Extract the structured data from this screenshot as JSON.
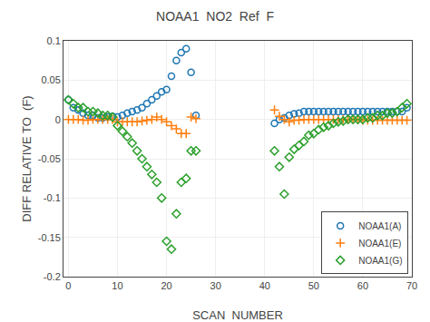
{
  "chart_data": {
    "type": "scatter",
    "title": "NOAA1  NO2  Ref  F",
    "x_label": "SCAN  NUMBER",
    "y_label": "DIFF RELATIVE TO  (F)",
    "xlim": [
      -1,
      70
    ],
    "ylim": [
      -0.2,
      0.1
    ],
    "xticks": [
      0,
      10,
      20,
      30,
      40,
      50,
      60,
      70
    ],
    "yticks": [
      0.1,
      0.05,
      0,
      -0.05,
      -0.1,
      -0.15,
      -0.2
    ],
    "grid": true,
    "legend": "lower right",
    "x": [
      0,
      1,
      2,
      3,
      4,
      5,
      6,
      7,
      8,
      9,
      10,
      11,
      12,
      13,
      14,
      15,
      16,
      17,
      18,
      19,
      20,
      21,
      22,
      23,
      24,
      25,
      26,
      42,
      43,
      44,
      45,
      46,
      47,
      48,
      49,
      50,
      51,
      52,
      53,
      54,
      55,
      56,
      57,
      58,
      59,
      60,
      61,
      62,
      63,
      64,
      65,
      66,
      67,
      68,
      69
    ],
    "series": [
      {
        "name": "NOAA1(A)",
        "marker": "circle",
        "values": [
          0.025,
          0.015,
          0.012,
          0.008,
          0.005,
          0.005,
          0.002,
          0.002,
          0.003,
          0.004,
          0.003,
          0.005,
          0.008,
          0.01,
          0.012,
          0.015,
          0.02,
          0.025,
          0.03,
          0.035,
          0.038,
          0.055,
          0.075,
          0.085,
          0.09,
          0.06,
          0.005,
          -0.005,
          0.0,
          0.002,
          0.005,
          0.007,
          0.008,
          0.01,
          0.01,
          0.01,
          0.01,
          0.01,
          0.01,
          0.01,
          0.01,
          0.01,
          0.01,
          0.01,
          0.01,
          0.01,
          0.01,
          0.01,
          0.01,
          0.01,
          0.01,
          0.01,
          0.01,
          0.01,
          0.015
        ]
      },
      {
        "name": "NOAA1(E)",
        "marker": "plus",
        "values": [
          0.0,
          0.0,
          0.0,
          -0.001,
          -0.001,
          0.0,
          0.0,
          0.0,
          0.0,
          0.0,
          -0.003,
          -0.003,
          -0.003,
          -0.003,
          -0.003,
          -0.002,
          -0.001,
          0.0,
          0.003,
          0.0,
          -0.003,
          -0.008,
          -0.012,
          -0.018,
          -0.018,
          0.003,
          0.001,
          0.012,
          0.004,
          0.0,
          -0.003,
          -0.001,
          -0.001,
          0.0,
          0.0,
          0.0,
          0.0,
          0.0,
          0.0,
          0.0,
          0.0,
          0.0,
          0.0,
          0.0,
          0.0,
          -0.001,
          -0.001,
          -0.001,
          -0.001,
          -0.001,
          -0.001,
          -0.001,
          -0.001,
          -0.001,
          -0.001
        ]
      },
      {
        "name": "NOAA1(G)",
        "marker": "diamond",
        "values": [
          0.025,
          0.02,
          0.015,
          0.015,
          0.01,
          0.01,
          0.008,
          0.005,
          0.005,
          0.003,
          -0.008,
          -0.015,
          -0.022,
          -0.03,
          -0.04,
          -0.05,
          -0.06,
          -0.07,
          -0.08,
          -0.1,
          -0.155,
          -0.165,
          -0.12,
          -0.08,
          -0.075,
          -0.04,
          -0.04,
          -0.04,
          -0.06,
          -0.095,
          -0.048,
          -0.038,
          -0.033,
          -0.028,
          -0.02,
          -0.018,
          -0.013,
          -0.01,
          -0.008,
          -0.005,
          -0.003,
          -0.002,
          0.0,
          0.0,
          0.0,
          0.0,
          0.002,
          0.002,
          0.005,
          0.005,
          0.008,
          0.008,
          0.01,
          0.015,
          0.02
        ]
      }
    ]
  }
}
